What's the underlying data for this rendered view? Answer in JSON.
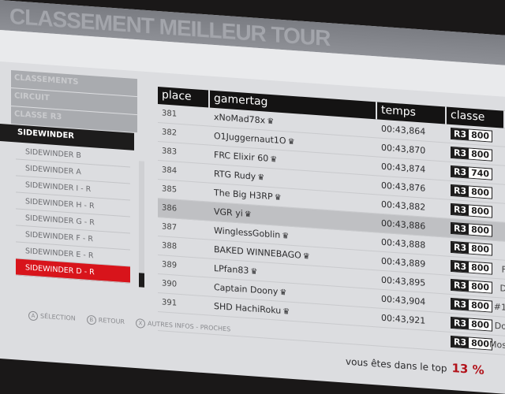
{
  "title": "CLASSEMENT MEILLEUR TOUR",
  "breadcrumbs": [
    "CLASSEMENTS",
    "CIRCUIT",
    "CLASSE R3",
    "SIDEWINDER"
  ],
  "tracks": [
    "SIDEWINDER B",
    "SIDEWINDER A",
    "SIDEWINDER I - R",
    "SIDEWINDER H - R",
    "SIDEWINDER G - R",
    "SIDEWINDER F - R",
    "SIDEWINDER E - R",
    "SIDEWINDER D - R"
  ],
  "selected_track": "SIDEWINDER D - R",
  "columns": {
    "place": "place",
    "gamertag": "gamertag",
    "temps": "temps",
    "classe": "classe"
  },
  "rows": [
    {
      "place": "381",
      "gamertag": "xNoMad78x",
      "temps": "00:43,864",
      "class": "R3",
      "pi": "800",
      "extra": ""
    },
    {
      "place": "382",
      "gamertag": "O1Juggernaut1O",
      "temps": "00:43,870",
      "class": "R3",
      "pi": "800",
      "extra": ""
    },
    {
      "place": "383",
      "gamertag": "FRC Elixir 60",
      "temps": "00:43,874",
      "class": "R3",
      "pi": "740",
      "extra": ""
    },
    {
      "place": "384",
      "gamertag": "RTG Rudy",
      "temps": "00:43,876",
      "class": "R3",
      "pi": "800",
      "extra": ""
    },
    {
      "place": "385",
      "gamertag": "The Big H3RP",
      "temps": "00:43,882",
      "class": "R3",
      "pi": "800",
      "extra": ""
    },
    {
      "place": "386",
      "gamertag": "VGR yi",
      "temps": "00:43,886",
      "class": "R3",
      "pi": "800",
      "extra": ""
    },
    {
      "place": "387",
      "gamertag": "WinglessGoblin",
      "temps": "00:43,888",
      "class": "R3",
      "pi": "800",
      "extra": ""
    },
    {
      "place": "388",
      "gamertag": "BAKED WINNEBAGO",
      "temps": "00:43,889",
      "class": "R3",
      "pi": "800",
      "extra": "F"
    },
    {
      "place": "389",
      "gamertag": "LPfan83",
      "temps": "00:43,895",
      "class": "R3",
      "pi": "800",
      "extra": "D"
    },
    {
      "place": "390",
      "gamertag": "Captain Doony",
      "temps": "00:43,904",
      "class": "R3",
      "pi": "800",
      "extra": "#1"
    },
    {
      "place": "391",
      "gamertag": "SHD HachiRoku",
      "temps": "00:43,921",
      "class": "R3",
      "pi": "800",
      "extra": "Do"
    },
    {
      "place": "",
      "gamertag": "",
      "temps": "",
      "class": "R3",
      "pi": "800",
      "extra": "Mos"
    }
  ],
  "highlighted_place": "386",
  "footer": {
    "select": "SÉLECTION",
    "back": "RETOUR",
    "more": "AUTRES INFOS - PROCHES",
    "key_a": "A",
    "key_b": "B",
    "key_x": "X"
  },
  "top_label": "vous êtes dans le top",
  "top_value": "13 %",
  "colors": {
    "accent": "#d8141b",
    "header": "#141313",
    "percent": "#b2121a"
  }
}
